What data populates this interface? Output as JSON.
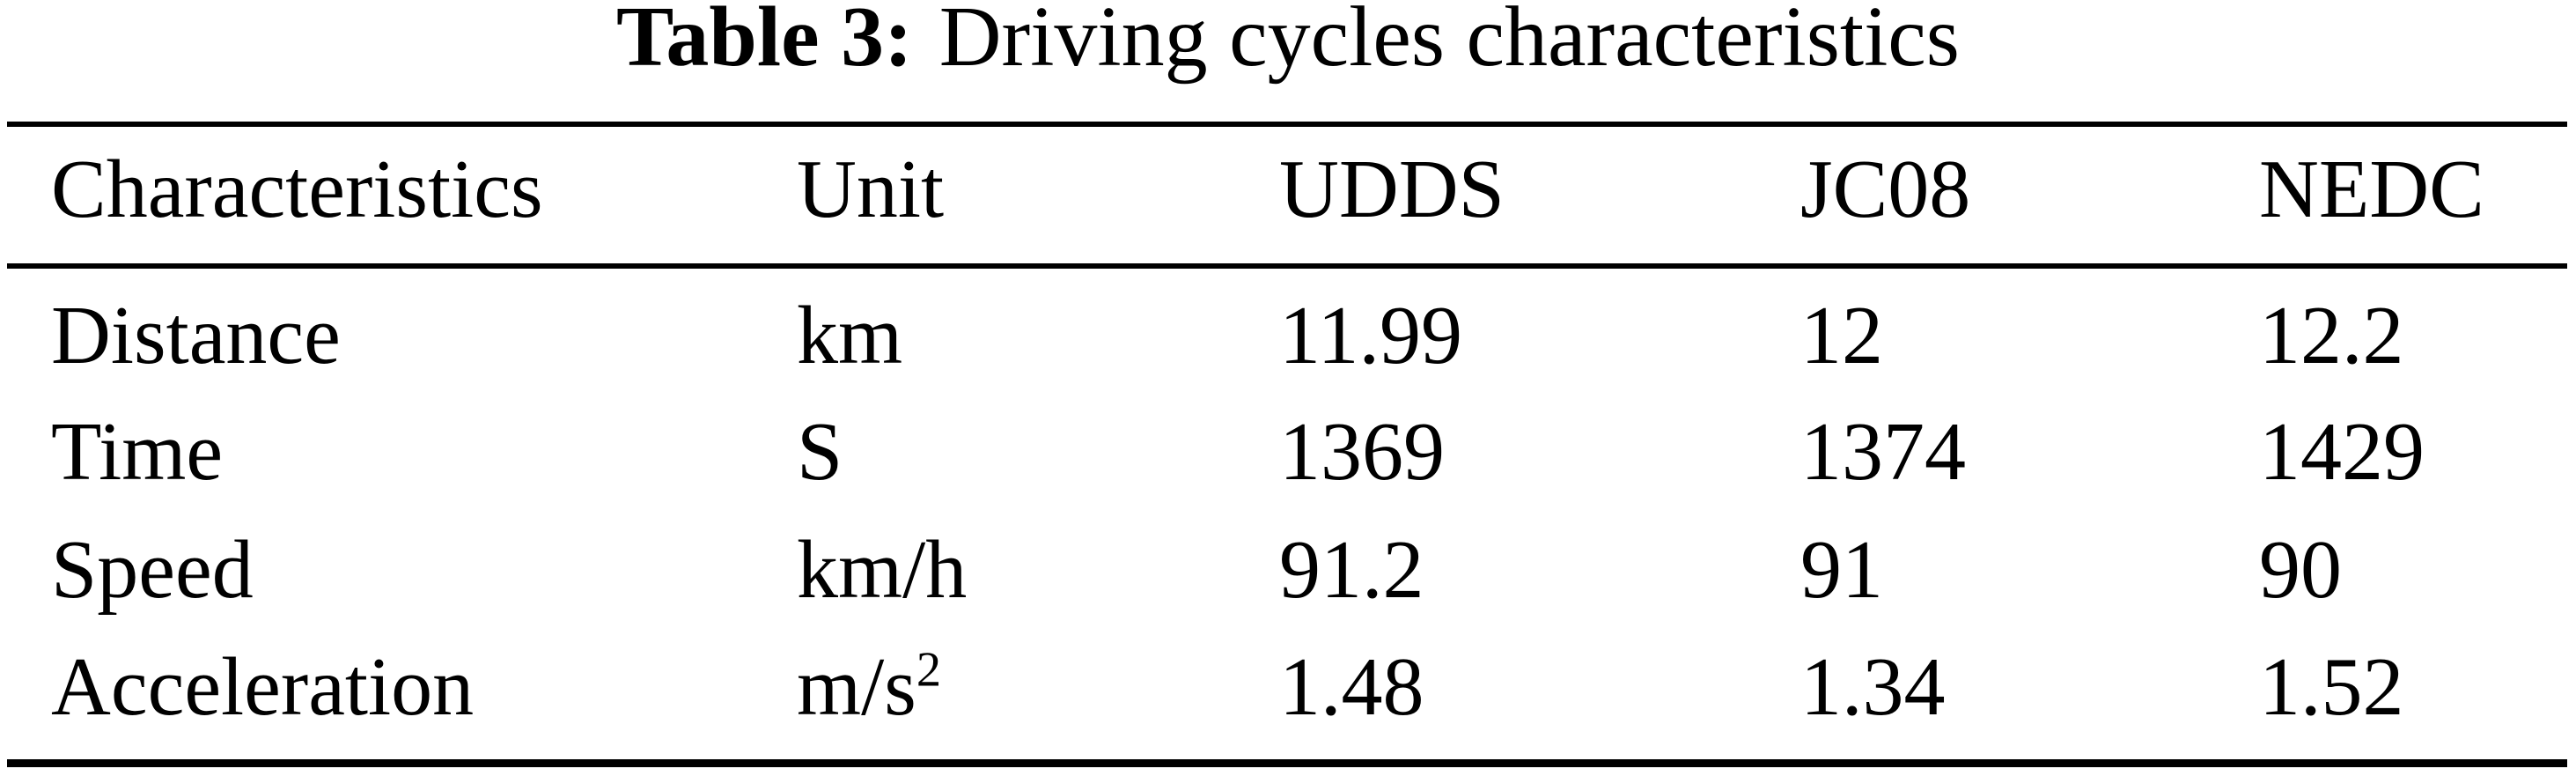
{
  "page": {
    "background_color": "#ffffff",
    "text_color": "#000000"
  },
  "caption": {
    "label": "Table 3:",
    "text": "Driving cycles characteristics"
  },
  "table": {
    "columns": [
      "Characteristics",
      "Unit",
      "UDDS",
      "JC08",
      "NEDC"
    ],
    "rows": [
      {
        "cells": [
          "Distance",
          "km",
          "11.99",
          "12",
          "12.2"
        ]
      },
      {
        "cells": [
          "Time",
          "S",
          "1369",
          "1374",
          "1429"
        ]
      },
      {
        "cells": [
          "Speed",
          "km/h",
          "91.2",
          "91",
          "90"
        ]
      },
      {
        "cells": [
          "Acceleration",
          "m/s",
          "1.48",
          "1.34",
          "1.52"
        ],
        "unit_sup": "2"
      }
    ]
  },
  "chart_data": {
    "type": "table",
    "title": "Table 3: Driving cycles characteristics",
    "columns": [
      "Characteristics",
      "Unit",
      "UDDS",
      "JC08",
      "NEDC"
    ],
    "rows": [
      [
        "Distance",
        "km",
        11.99,
        12,
        12.2
      ],
      [
        "Time",
        "S",
        1369,
        1374,
        1429
      ],
      [
        "Speed",
        "km/h",
        91.2,
        91,
        90
      ],
      [
        "Acceleration",
        "m/s^2",
        1.48,
        1.34,
        1.52
      ]
    ]
  }
}
